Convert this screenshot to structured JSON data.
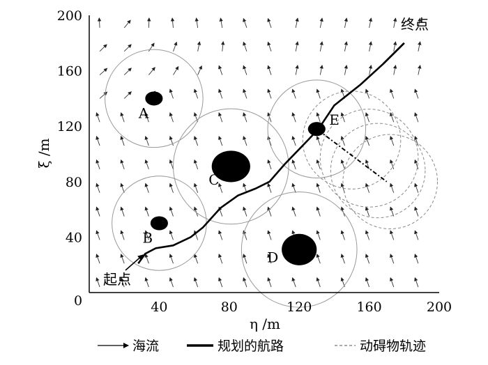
{
  "chart_data": {
    "type": "vector-field-path",
    "xlabel": "η /m",
    "ylabel": "ξ /m",
    "xlim": [
      0,
      200
    ],
    "ylim": [
      0,
      200
    ],
    "x_ticks": [
      "0",
      "40",
      "80",
      "120",
      "160",
      "200"
    ],
    "y_ticks": [
      "200",
      "160",
      "120",
      "80",
      "40"
    ],
    "obstacles": [
      {
        "label": "A",
        "x": 37,
        "y": 140,
        "rx": 5,
        "ry": 4,
        "zone_r": 28
      },
      {
        "label": "B",
        "x": 40,
        "y": 50,
        "rx": 5,
        "ry": 4,
        "zone_r": 27
      },
      {
        "label": "C",
        "x": 81,
        "y": 91,
        "rx": 11,
        "ry": 9,
        "zone_r": 33
      },
      {
        "label": "D",
        "x": 120,
        "y": 31,
        "rx": 10,
        "ry": 9,
        "zone_r": 33
      },
      {
        "label": "E",
        "x": 130,
        "y": 118,
        "rx": 5,
        "ry": 4,
        "zone_r": 28
      }
    ],
    "moving_obstacle_track": {
      "from": [
        131,
        117
      ],
      "to": [
        170,
        80
      ],
      "circles": [
        [
          150,
          110,
          28
        ],
        [
          160,
          97,
          28
        ],
        [
          165,
          88,
          27
        ],
        [
          172,
          80,
          27
        ]
      ]
    },
    "start_label": "起点",
    "end_label": "终点",
    "planned_route": [
      [
        28,
        21
      ],
      [
        32,
        28
      ],
      [
        38,
        32
      ],
      [
        48,
        34
      ],
      [
        58,
        40
      ],
      [
        65,
        47
      ],
      [
        75,
        61
      ],
      [
        85,
        70
      ],
      [
        95,
        75
      ],
      [
        103,
        80
      ],
      [
        112,
        93
      ],
      [
        125,
        110
      ],
      [
        131,
        118
      ],
      [
        140,
        135
      ],
      [
        155,
        150
      ],
      [
        168,
        165
      ],
      [
        180,
        180
      ]
    ],
    "ocean_current": {
      "description_grid": true,
      "swirl_center": [
        22,
        195
      ]
    },
    "legend": [
      {
        "key": "current",
        "label": "海流"
      },
      {
        "key": "route",
        "label": "规划的航路"
      },
      {
        "key": "track",
        "label": "动碍物轨迹"
      }
    ]
  }
}
